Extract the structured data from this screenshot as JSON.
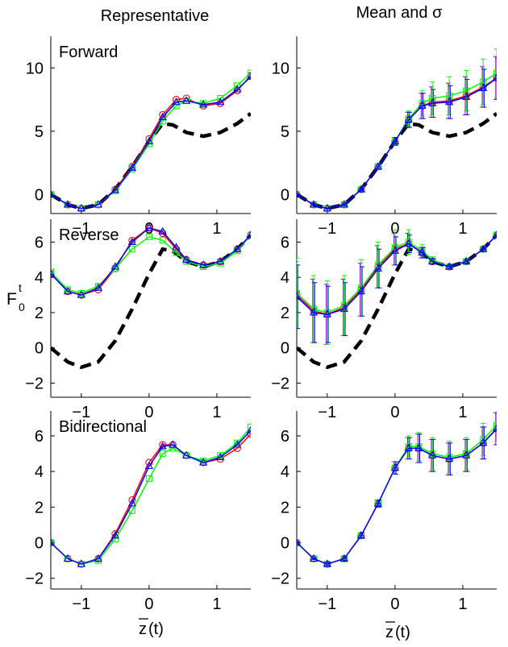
{
  "figure": {
    "column_titles": [
      "Representative",
      "Mean and σ"
    ],
    "ylabel_main": "F",
    "ylabel_sub": "0",
    "ylabel_sup": "t",
    "xlabel_main": "z",
    "xlabel_suffix": "(t)",
    "colors": {
      "red": "#ff0000",
      "green": "#00ff00",
      "blue": "#0000ff",
      "purple": "#a000c0",
      "reference": "#000000"
    }
  },
  "chart_data": [
    {
      "type": "line",
      "title": "Forward",
      "xlim": [
        -1.45,
        1.5
      ],
      "ylim": [
        -1.5,
        12.5
      ],
      "xticks": [
        -1,
        0,
        1
      ],
      "yticks": [
        0,
        5,
        10
      ],
      "reference_dashed": {
        "x": [
          -1.45,
          -1.2,
          -1.0,
          -0.75,
          -0.5,
          -0.25,
          0.0,
          0.2,
          0.35,
          0.55,
          0.8,
          1.05,
          1.3,
          1.5
        ],
        "y": [
          0,
          -0.8,
          -1.1,
          -0.8,
          0.4,
          2.2,
          4.2,
          5.6,
          5.5,
          4.9,
          4.6,
          4.9,
          5.6,
          6.4
        ]
      },
      "series": [
        {
          "marker": "circle",
          "x": [
            -1.45,
            -1.2,
            -1.0,
            -0.75,
            -0.5,
            -0.25,
            0.0,
            0.2,
            0.4,
            0.55,
            0.8,
            1.05,
            1.3,
            1.5
          ],
          "y": [
            0,
            -0.8,
            -1.1,
            -0.8,
            0.4,
            2.2,
            4.4,
            6.3,
            7.5,
            7.6,
            7.0,
            7.2,
            8.2,
            9.4
          ]
        },
        {
          "marker": "square",
          "x": [
            -1.45,
            -1.2,
            -1.0,
            -0.75,
            -0.5,
            -0.25,
            0.0,
            0.2,
            0.4,
            0.55,
            0.8,
            1.05,
            1.3,
            1.5
          ],
          "y": [
            0,
            -0.8,
            -1.1,
            -0.8,
            0.3,
            2.0,
            4.0,
            5.8,
            7.0,
            7.4,
            7.2,
            7.6,
            8.6,
            9.6
          ]
        },
        {
          "marker": "triangle",
          "x": [
            -1.45,
            -1.2,
            -1.0,
            -0.75,
            -0.5,
            -0.25,
            0.0,
            0.2,
            0.4,
            0.55,
            0.8,
            1.05,
            1.3,
            1.5
          ],
          "y": [
            0,
            -0.8,
            -1.1,
            -0.8,
            0.35,
            2.1,
            4.2,
            6.1,
            7.3,
            7.4,
            7.1,
            7.3,
            8.3,
            9.3
          ]
        }
      ]
    },
    {
      "type": "line",
      "title": "",
      "xlim": [
        -1.45,
        1.5
      ],
      "ylim": [
        -1.5,
        12.5
      ],
      "xticks": [
        -1,
        0,
        1
      ],
      "yticks": [
        0,
        5,
        10
      ],
      "reference_dashed": {
        "x": [
          -1.45,
          -1.2,
          -1.0,
          -0.75,
          -0.5,
          -0.25,
          0.0,
          0.2,
          0.35,
          0.55,
          0.8,
          1.05,
          1.3,
          1.5
        ],
        "y": [
          0,
          -0.8,
          -1.1,
          -0.8,
          0.4,
          2.2,
          4.2,
          5.6,
          5.5,
          4.9,
          4.6,
          4.9,
          5.6,
          6.4
        ]
      },
      "series": [
        {
          "marker": "circle",
          "x": [
            -1.45,
            -1.2,
            -1.0,
            -0.75,
            -0.5,
            -0.25,
            0.0,
            0.2,
            0.4,
            0.55,
            0.8,
            1.05,
            1.3,
            1.5
          ],
          "y": [
            0,
            -0.8,
            -1.1,
            -0.8,
            0.4,
            2.2,
            4.2,
            5.9,
            7.0,
            7.3,
            7.4,
            7.8,
            8.5,
            9.2
          ],
          "err": [
            0.05,
            0.05,
            0.05,
            0.1,
            0.1,
            0.2,
            0.3,
            0.6,
            1.0,
            1.2,
            1.4,
            1.5,
            1.6,
            1.7
          ]
        },
        {
          "marker": "square",
          "x": [
            -1.45,
            -1.2,
            -1.0,
            -0.75,
            -0.5,
            -0.25,
            0.0,
            0.2,
            0.4,
            0.55,
            0.8,
            1.05,
            1.3,
            1.5
          ],
          "y": [
            0,
            -0.8,
            -1.1,
            -0.8,
            0.4,
            2.2,
            4.2,
            6.0,
            7.2,
            7.6,
            7.8,
            8.2,
            8.9,
            9.6
          ],
          "err": [
            0.05,
            0.05,
            0.05,
            0.1,
            0.1,
            0.2,
            0.3,
            0.6,
            1.0,
            1.3,
            1.5,
            1.6,
            1.8,
            1.9
          ]
        },
        {
          "marker": "triangle",
          "x": [
            -1.45,
            -1.2,
            -1.0,
            -0.75,
            -0.5,
            -0.25,
            0.0,
            0.2,
            0.4,
            0.55,
            0.8,
            1.05,
            1.3,
            1.5
          ],
          "y": [
            0,
            -0.8,
            -1.1,
            -0.8,
            0.4,
            2.2,
            4.2,
            5.9,
            7.0,
            7.2,
            7.3,
            7.7,
            8.4,
            9.2
          ],
          "err": [
            0.05,
            0.05,
            0.05,
            0.1,
            0.1,
            0.2,
            0.3,
            0.6,
            1.0,
            1.1,
            1.3,
            1.4,
            1.5,
            1.6
          ]
        }
      ]
    },
    {
      "type": "line",
      "title": "Reverse",
      "xlim": [
        -1.45,
        1.5
      ],
      "ylim": [
        -2.8,
        7.3
      ],
      "xticks": [
        -1,
        0,
        1
      ],
      "yticks": [
        -2,
        0,
        2,
        4,
        6
      ],
      "reference_dashed": {
        "x": [
          -1.45,
          -1.2,
          -1.0,
          -0.75,
          -0.5,
          -0.25,
          0.0,
          0.2,
          0.35,
          0.55,
          0.8,
          1.05,
          1.3,
          1.5
        ],
        "y": [
          0,
          -0.8,
          -1.1,
          -0.8,
          0.4,
          2.2,
          4.2,
          5.6,
          5.5,
          4.9,
          4.6,
          4.9,
          5.6,
          6.4
        ]
      },
      "series": [
        {
          "marker": "circle",
          "x": [
            -1.45,
            -1.2,
            -1.0,
            -0.75,
            -0.5,
            -0.25,
            0.0,
            0.2,
            0.4,
            0.55,
            0.8,
            1.05,
            1.3,
            1.5
          ],
          "y": [
            4.2,
            3.2,
            3.0,
            3.3,
            4.5,
            6.1,
            6.8,
            6.5,
            5.6,
            5.0,
            4.7,
            4.9,
            5.6,
            6.4
          ]
        },
        {
          "marker": "square",
          "x": [
            -1.45,
            -1.2,
            -1.0,
            -0.75,
            -0.5,
            -0.25,
            0.0,
            0.2,
            0.4,
            0.55,
            0.8,
            1.05,
            1.3,
            1.5
          ],
          "y": [
            4.3,
            3.3,
            3.1,
            3.5,
            4.5,
            5.6,
            6.3,
            6.1,
            5.4,
            4.9,
            4.6,
            4.8,
            5.5,
            6.4
          ]
        },
        {
          "marker": "triangle",
          "x": [
            -1.45,
            -1.2,
            -1.0,
            -0.75,
            -0.5,
            -0.25,
            0.0,
            0.2,
            0.4,
            0.55,
            0.8,
            1.05,
            1.3,
            1.5
          ],
          "y": [
            4.2,
            3.2,
            3.0,
            3.4,
            4.6,
            6.0,
            6.8,
            6.6,
            5.7,
            5.0,
            4.7,
            4.9,
            5.6,
            6.4
          ]
        }
      ]
    },
    {
      "type": "line",
      "title": "",
      "xlim": [
        -1.45,
        1.5
      ],
      "ylim": [
        -2.8,
        7.3
      ],
      "xticks": [
        -1,
        0,
        1
      ],
      "yticks": [
        -2,
        0,
        2,
        4,
        6
      ],
      "reference_dashed": {
        "x": [
          -1.45,
          -1.2,
          -1.0,
          -0.75,
          -0.5,
          -0.25,
          0.0,
          0.2,
          0.35,
          0.55,
          0.8,
          1.05,
          1.3,
          1.5
        ],
        "y": [
          0,
          -0.8,
          -1.1,
          -0.8,
          0.4,
          2.2,
          4.2,
          5.6,
          5.5,
          4.9,
          4.6,
          4.9,
          5.6,
          6.4
        ]
      },
      "series": [
        {
          "marker": "circle",
          "x": [
            -1.45,
            -1.2,
            -1.0,
            -0.75,
            -0.5,
            -0.25,
            0.0,
            0.2,
            0.4,
            0.55,
            0.8,
            1.05,
            1.3,
            1.5
          ],
          "y": [
            3.0,
            2.1,
            1.9,
            2.3,
            3.3,
            4.6,
            5.6,
            5.9,
            5.4,
            4.9,
            4.6,
            4.9,
            5.6,
            6.4
          ],
          "err": [
            1.9,
            1.8,
            1.7,
            1.6,
            1.5,
            1.2,
            0.9,
            0.6,
            0.3,
            0.15,
            0.1,
            0.1,
            0.05,
            0.05
          ]
        },
        {
          "marker": "square",
          "x": [
            -1.45,
            -1.2,
            -1.0,
            -0.75,
            -0.5,
            -0.25,
            0.0,
            0.2,
            0.4,
            0.55,
            0.8,
            1.05,
            1.3,
            1.5
          ],
          "y": [
            3.1,
            2.2,
            2.0,
            2.4,
            3.4,
            4.7,
            5.7,
            6.0,
            5.5,
            5.0,
            4.6,
            4.9,
            5.6,
            6.4
          ],
          "err": [
            2.0,
            1.9,
            1.8,
            1.7,
            1.6,
            1.3,
            1.0,
            0.7,
            0.35,
            0.15,
            0.1,
            0.1,
            0.05,
            0.05
          ]
        },
        {
          "marker": "triangle",
          "x": [
            -1.45,
            -1.2,
            -1.0,
            -0.75,
            -0.5,
            -0.25,
            0.0,
            0.2,
            0.4,
            0.55,
            0.8,
            1.05,
            1.3,
            1.5
          ],
          "y": [
            2.9,
            2.0,
            1.9,
            2.2,
            3.2,
            4.5,
            5.5,
            5.9,
            5.4,
            4.9,
            4.6,
            4.9,
            5.6,
            6.4
          ],
          "err": [
            1.8,
            1.7,
            1.6,
            1.5,
            1.4,
            1.1,
            0.8,
            0.5,
            0.3,
            0.15,
            0.1,
            0.1,
            0.05,
            0.05
          ]
        }
      ]
    },
    {
      "type": "line",
      "title": "Bidirectional",
      "xlim": [
        -1.45,
        1.5
      ],
      "ylim": [
        -2.6,
        7.4
      ],
      "xticks": [
        -1,
        0,
        1
      ],
      "yticks": [
        -2,
        0,
        2,
        4,
        6
      ],
      "series": [
        {
          "marker": "circle",
          "x": [
            -1.45,
            -1.2,
            -1.0,
            -0.75,
            -0.5,
            -0.25,
            0.0,
            0.2,
            0.35,
            0.55,
            0.8,
            1.05,
            1.3,
            1.5
          ],
          "y": [
            0,
            -0.9,
            -1.2,
            -0.9,
            0.5,
            2.4,
            4.5,
            5.5,
            5.5,
            4.9,
            4.5,
            4.7,
            5.3,
            6.1
          ]
        },
        {
          "marker": "square",
          "x": [
            -1.45,
            -1.2,
            -1.0,
            -0.75,
            -0.5,
            -0.25,
            0.0,
            0.2,
            0.35,
            0.55,
            0.8,
            1.05,
            1.3,
            1.5
          ],
          "y": [
            0,
            -0.9,
            -1.2,
            -1.0,
            0.2,
            1.8,
            3.6,
            5.0,
            5.3,
            4.9,
            4.6,
            4.9,
            5.6,
            6.5
          ]
        },
        {
          "marker": "triangle",
          "x": [
            -1.45,
            -1.2,
            -1.0,
            -0.75,
            -0.5,
            -0.25,
            0.0,
            0.2,
            0.35,
            0.55,
            0.8,
            1.05,
            1.3,
            1.5
          ],
          "y": [
            0,
            -0.9,
            -1.2,
            -0.9,
            0.4,
            2.2,
            4.3,
            5.4,
            5.5,
            4.9,
            4.5,
            4.8,
            5.5,
            6.3
          ]
        }
      ]
    },
    {
      "type": "line",
      "title": "",
      "xlim": [
        -1.45,
        1.5
      ],
      "ylim": [
        -2.6,
        7.4
      ],
      "xticks": [
        -1,
        0,
        1
      ],
      "yticks": [
        -2,
        0,
        2,
        4,
        6
      ],
      "series": [
        {
          "marker": "circle",
          "x": [
            -1.45,
            -1.2,
            -1.0,
            -0.75,
            -0.5,
            -0.25,
            0.0,
            0.2,
            0.35,
            0.55,
            0.8,
            1.05,
            1.3,
            1.5
          ],
          "y": [
            0,
            -0.9,
            -1.2,
            -0.9,
            0.4,
            2.2,
            4.2,
            5.3,
            5.3,
            4.9,
            4.7,
            4.9,
            5.6,
            6.4
          ],
          "err": [
            0.05,
            0.05,
            0.1,
            0.1,
            0.15,
            0.2,
            0.35,
            0.6,
            0.8,
            0.9,
            0.9,
            0.9,
            0.9,
            0.9
          ]
        },
        {
          "marker": "square",
          "x": [
            -1.45,
            -1.2,
            -1.0,
            -0.75,
            -0.5,
            -0.25,
            0.0,
            0.2,
            0.35,
            0.55,
            0.8,
            1.05,
            1.3,
            1.5
          ],
          "y": [
            0,
            -0.9,
            -1.2,
            -0.9,
            0.4,
            2.2,
            4.2,
            5.4,
            5.4,
            5.0,
            4.8,
            5.0,
            5.8,
            6.6
          ],
          "err": [
            0.05,
            0.05,
            0.1,
            0.1,
            0.15,
            0.2,
            0.35,
            0.6,
            0.8,
            0.9,
            0.9,
            0.9,
            0.9,
            0.9
          ]
        },
        {
          "marker": "triangle",
          "x": [
            -1.45,
            -1.2,
            -1.0,
            -0.75,
            -0.5,
            -0.25,
            0.0,
            0.2,
            0.35,
            0.55,
            0.8,
            1.05,
            1.3,
            1.5
          ],
          "y": [
            0,
            -0.9,
            -1.2,
            -0.9,
            0.4,
            2.2,
            4.2,
            5.3,
            5.3,
            4.9,
            4.7,
            4.9,
            5.6,
            6.4
          ],
          "err": [
            0.05,
            0.05,
            0.1,
            0.1,
            0.15,
            0.2,
            0.35,
            0.6,
            0.8,
            0.9,
            0.9,
            0.9,
            0.9,
            0.9
          ]
        }
      ]
    }
  ]
}
